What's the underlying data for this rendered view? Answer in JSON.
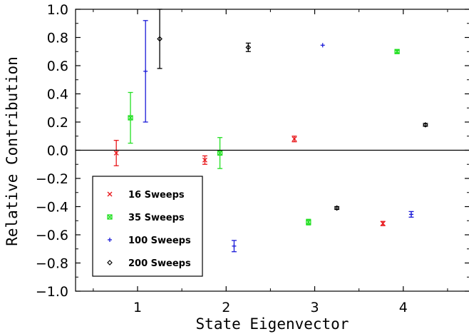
{
  "chart_data": {
    "type": "scatter",
    "xlabel": "State Eigenvector",
    "ylabel": "Relative Contribution",
    "xlim": [
      0.3,
      4.75
    ],
    "ylim": [
      -1.0,
      1.0
    ],
    "xticks": [
      1,
      2,
      3,
      4
    ],
    "yticks": [
      -1.0,
      -0.8,
      -0.6,
      -0.4,
      -0.2,
      0.0,
      0.2,
      0.4,
      0.6,
      0.8,
      1.0
    ],
    "ytick_labels": [
      "−1.0",
      "−0.8",
      "−0.6",
      "−0.4",
      "−0.2",
      "0.0",
      "0.2",
      "0.4",
      "0.6",
      "0.8",
      "1.0"
    ],
    "zero_line": true,
    "grid": false,
    "legend_position": "bottom-left",
    "series": [
      {
        "name": "16 Sweeps",
        "color": "#e8161a",
        "marker": "x",
        "points": [
          {
            "x": 0.76,
            "y": -0.02,
            "err": 0.09
          },
          {
            "x": 1.76,
            "y": -0.07,
            "err": 0.03
          },
          {
            "x": 2.77,
            "y": 0.08,
            "err": 0.02
          },
          {
            "x": 3.77,
            "y": -0.52,
            "err": 0.015
          }
        ]
      },
      {
        "name": "35 Sweeps",
        "color": "#22e022",
        "marker": "box-x",
        "points": [
          {
            "x": 0.92,
            "y": 0.23,
            "err": 0.18
          },
          {
            "x": 1.93,
            "y": -0.02,
            "err": 0.11
          },
          {
            "x": 2.93,
            "y": -0.51,
            "err": 0.02
          },
          {
            "x": 3.93,
            "y": 0.7,
            "err": 0.01
          }
        ]
      },
      {
        "name": "100 Sweeps",
        "color": "#1a1ad8",
        "marker": "plus",
        "points": [
          {
            "x": 1.09,
            "y": 0.56,
            "err": 0.36
          },
          {
            "x": 2.09,
            "y": -0.68,
            "err": 0.04
          },
          {
            "x": 3.09,
            "y": 0.745,
            "err": 0.0
          },
          {
            "x": 4.09,
            "y": -0.455,
            "err": 0.02
          }
        ]
      },
      {
        "name": "200 Sweeps",
        "color": "#000000",
        "marker": "diamond",
        "points": [
          {
            "x": 1.25,
            "y": 0.79,
            "err": 0.21
          },
          {
            "x": 2.25,
            "y": 0.73,
            "err": 0.03
          },
          {
            "x": 3.25,
            "y": -0.41,
            "err": 0.01
          },
          {
            "x": 4.25,
            "y": 0.18,
            "err": 0.01
          }
        ]
      }
    ]
  }
}
